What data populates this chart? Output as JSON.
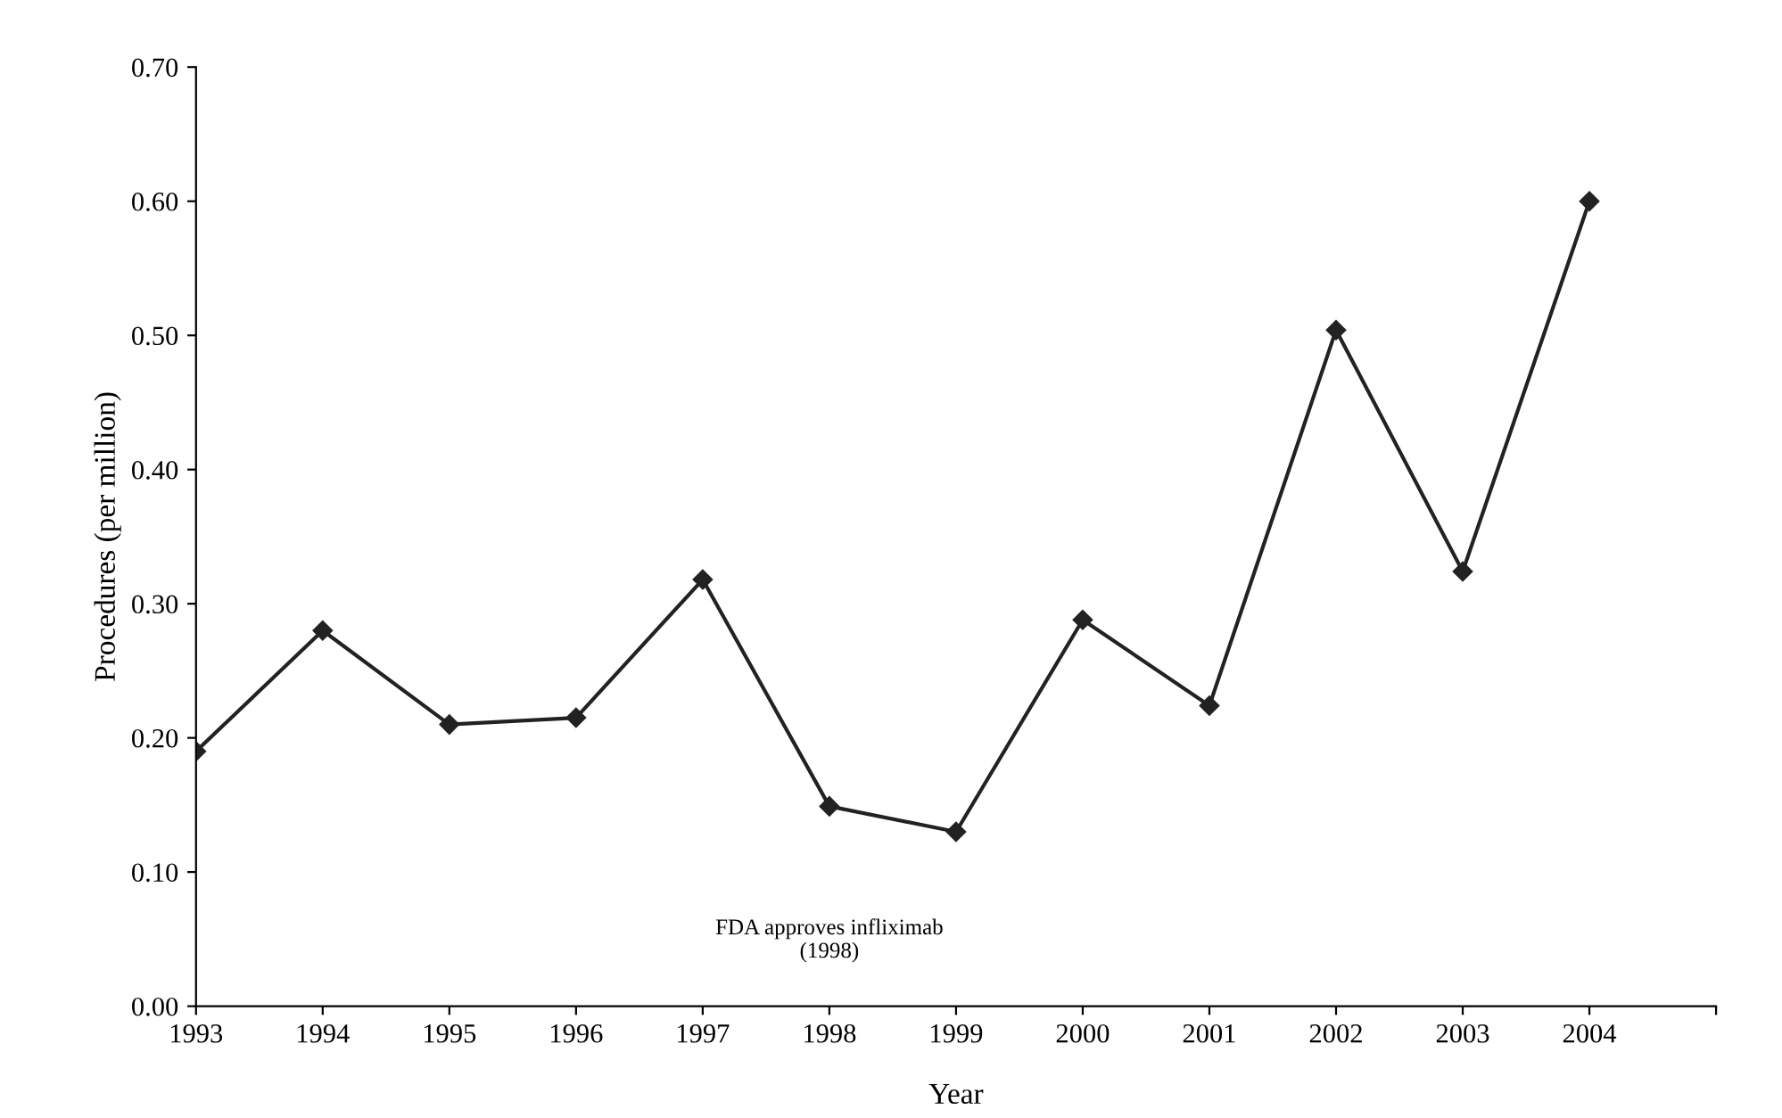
{
  "chart_data": {
    "type": "line",
    "xlabel": "Year",
    "ylabel": "Procedures (per million)",
    "x": [
      1993,
      1994,
      1995,
      1996,
      1997,
      1998,
      1999,
      2000,
      2001,
      2002,
      2003,
      2004
    ],
    "series": [
      {
        "color": "#222222",
        "values": [
          0.19,
          0.28,
          0.21,
          0.215,
          0.318,
          0.149,
          0.13,
          0.288,
          0.224,
          0.504,
          0.324,
          0.6
        ]
      }
    ],
    "xlim": [
      1993,
      2005
    ],
    "xticks": [
      1993,
      1994,
      1995,
      1996,
      1997,
      1998,
      1999,
      2000,
      2001,
      2002,
      2003,
      2004,
      {
        "value": 2005,
        "label": null
      }
    ],
    "ylim": [
      0,
      0.7
    ],
    "yticks": [
      {
        "value": 0,
        "label": "0.00"
      },
      {
        "value": 0.1,
        "label": "0.10"
      },
      {
        "value": 0.2,
        "label": "0.20"
      },
      {
        "value": 0.3,
        "label": "0.30"
      },
      {
        "value": 0.4,
        "label": "0.40"
      },
      {
        "value": 0.5,
        "label": "0.50"
      },
      {
        "value": 0.6,
        "label": "0.60"
      },
      {
        "value": 0.7,
        "label": "0.70"
      }
    ],
    "annotations": [
      "FDA approves infliximab\n(1998)"
    ],
    "marker": "diamond",
    "line_style": "solid",
    "grid": false,
    "legend": false
  }
}
